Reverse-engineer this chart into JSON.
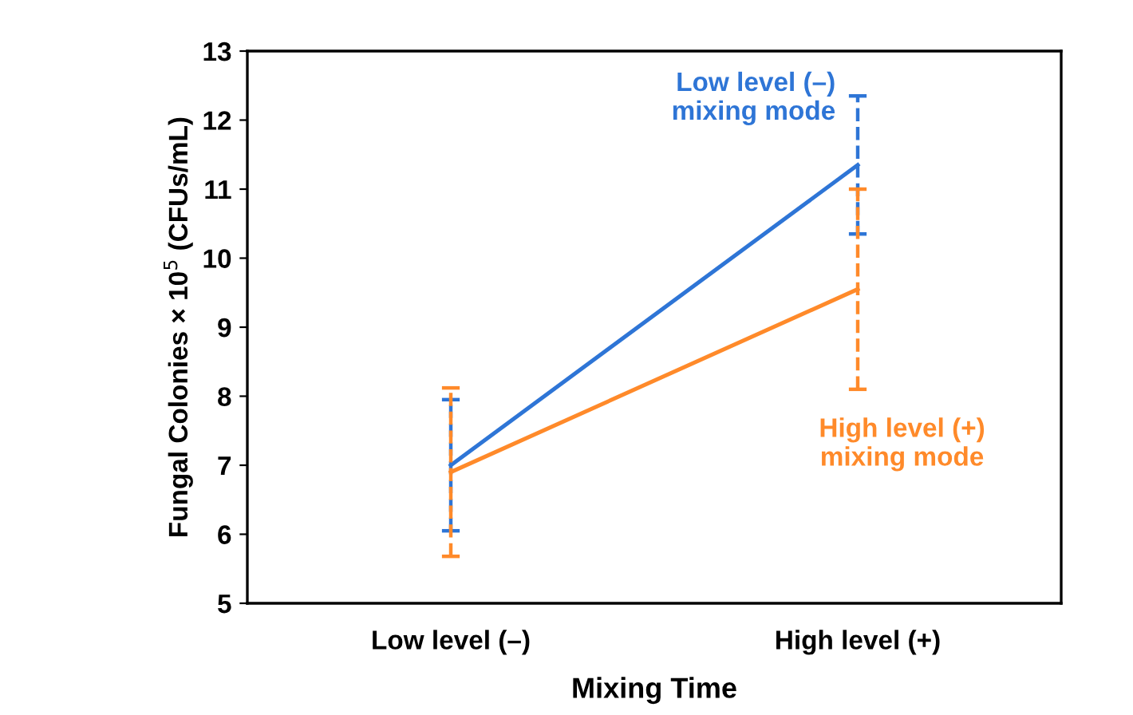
{
  "chart_data": {
    "type": "line",
    "xlabel": "Mixing Time",
    "ylabel": "Fungal Colonies × 10$^{5}$ (CFUs/mL)",
    "categories": [
      "Low level (–)",
      "High level (+)"
    ],
    "series": [
      {
        "name": "Low level (–)\nmixing mode",
        "color": "#2e75d6",
        "values": [
          7.0,
          11.35
        ],
        "errors": [
          0.95,
          1.0
        ]
      },
      {
        "name": "High level (+)\nmixing mode",
        "color": "#ff8a2a",
        "values": [
          6.9,
          9.55
        ],
        "errors": [
          1.22,
          1.45
        ]
      }
    ],
    "ylim": [
      5,
      13
    ],
    "yticks": [
      5,
      6,
      7,
      8,
      9,
      10,
      11,
      12,
      13
    ],
    "grid": false,
    "legend": false,
    "marker": "none",
    "line_style": "solid"
  }
}
